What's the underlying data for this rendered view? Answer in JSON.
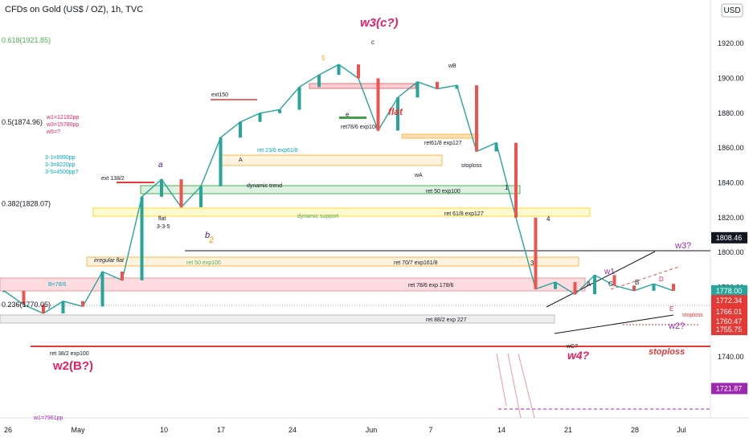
{
  "header": {
    "title": "CFDs on Gold (US$ / OZ), 1h, TVC",
    "currency_button": "USD"
  },
  "chart_data": {
    "type": "line",
    "ylim": [
      1705,
      1945
    ],
    "y_ticks": [
      "1920.00",
      "1900.00",
      "1880.00",
      "1860.00",
      "1840.00",
      "1820.00",
      "1800.00",
      "1780.00",
      "1760.00",
      "1740.00"
    ],
    "x_ticks": [
      "26",
      "May",
      "10",
      "17",
      "24",
      "Jun",
      "7",
      "14",
      "21",
      "28",
      "Jul"
    ],
    "x": [
      "Apr 26",
      "Apr 27",
      "Apr 28",
      "Apr 29",
      "Apr 30",
      "May 3",
      "May 5",
      "May 7",
      "May 10",
      "May 12",
      "May 14",
      "May 17",
      "May 19",
      "May 21",
      "May 24",
      "May 26",
      "May 28",
      "Jun 1",
      "Jun 2",
      "Jun 3",
      "Jun 4",
      "Jun 7",
      "Jun 9",
      "Jun 11",
      "Jun 14",
      "Jun 16",
      "Jun 17",
      "Jun 18",
      "Jun 21",
      "Jun 22",
      "Jun 23",
      "Jun 24",
      "Jun 25",
      "Jun 28",
      "Jun 29"
    ],
    "series": [
      {
        "values": [
          1778,
          1770,
          1765,
          1772,
          1769,
          1789,
          1784,
          1832,
          1842,
          1826,
          1838,
          1866,
          1875,
          1880,
          1882,
          1895,
          1902,
          1908,
          1900,
          1870,
          1889,
          1898,
          1894,
          1896,
          1858,
          1863,
          1820,
          1779,
          1783,
          1776,
          1787,
          1781,
          1778,
          1782,
          1778
        ]
      }
    ],
    "price_labels": [
      {
        "value": 1808.46,
        "text": "1808.46",
        "color": "#131722"
      },
      {
        "value": 1778.0,
        "text": "1778.00",
        "color": "#26a69a"
      },
      {
        "value": 1778.0,
        "text": "28:26",
        "color": "#26a69a",
        "offset": 1
      },
      {
        "value": 1772.34,
        "text": "1772.34",
        "color": "#e53935"
      },
      {
        "value": 1766.01,
        "text": "1766.01",
        "color": "#e53935"
      },
      {
        "value": 1760.47,
        "text": "1760.47",
        "color": "#e53935"
      },
      {
        "value": 1755.75,
        "text": "1755.75",
        "color": "#e53935"
      },
      {
        "value": 1721.87,
        "text": "1721.87",
        "color": "#9c27b0"
      }
    ],
    "fib_labels": [
      {
        "value": 1921.85,
        "text": "0.618(1921.85)",
        "color": "#4caf50"
      },
      {
        "value": 1874.96,
        "text": "0.5(1874.96)",
        "color": "#131722"
      },
      {
        "value": 1828.07,
        "text": "0.382(1828.07)",
        "color": "#131722"
      },
      {
        "value": 1770.05,
        "text": "0.236(1770.05)",
        "color": "#131722"
      }
    ],
    "zones": [
      {
        "text": "ret 23/6 exp61/8"
      },
      {
        "text": "dynamic trend"
      },
      {
        "text": "ret 50 exp100"
      },
      {
        "text": "dynamic support"
      },
      {
        "text": "ret 61/8 exp127"
      },
      {
        "text": "irregular flat"
      },
      {
        "text": "ret 50 exp100"
      },
      {
        "text": "ret 70/7 exp161/8"
      },
      {
        "text": "B=78/6"
      },
      {
        "text": "ret 78/6 exp 178/6"
      },
      {
        "text": "ret 88/2 exp 227"
      },
      {
        "text": "ret 38/2 exp100"
      },
      {
        "text": "ret78/6 exp100"
      },
      {
        "text": "ret61/8 exp127"
      }
    ],
    "annotations": [
      {
        "text": "w3(c?)",
        "color": "#e91e63"
      },
      {
        "text": "w2(B?)",
        "color": "#e91e63"
      },
      {
        "text": "w4?",
        "color": "#e91e63"
      },
      {
        "text": "w3?",
        "color": "#9c27b0"
      },
      {
        "text": "w2?",
        "color": "#9c27b0"
      },
      {
        "text": "w1",
        "color": "#9c27b0"
      },
      {
        "text": "flat",
        "color": "#e53935"
      },
      {
        "text": "stoploss",
        "color": "#e53935"
      },
      {
        "text": "stoploss",
        "color": "#131722"
      },
      {
        "text": "stoploss",
        "color": "#e53935"
      },
      {
        "text": "ext150",
        "color": "#131722"
      },
      {
        "text": "ext 138/2",
        "color": "#131722"
      },
      {
        "text": "flat",
        "color": "#131722"
      },
      {
        "text": "3-3-5",
        "color": "#131722"
      },
      {
        "text": "wA",
        "color": "#131722"
      },
      {
        "text": "wB",
        "color": "#131722"
      },
      {
        "text": "wC?",
        "color": "#131722"
      },
      {
        "text": "w1=7961pp",
        "color": "#9c27b0"
      },
      {
        "text": "w1=12192pp",
        "color": "#e91e63"
      },
      {
        "text": "w3=15780pp",
        "color": "#e91e63"
      },
      {
        "text": "w5=?",
        "color": "#e91e63"
      },
      {
        "text": "3-1=8990pp",
        "color": "#00acc1"
      },
      {
        "text": "3-3=8220pp",
        "color": "#00acc1"
      },
      {
        "text": "3-5=4500pp?",
        "color": "#00acc1"
      }
    ],
    "wave_labels": [
      "a",
      "b",
      "c",
      "1",
      "2",
      "3",
      "4",
      "5",
      "A",
      "B",
      "C",
      "D",
      "E",
      "e"
    ]
  }
}
